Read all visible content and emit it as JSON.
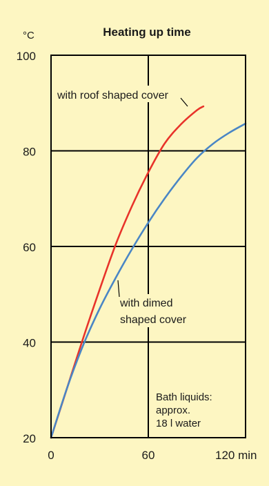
{
  "chart_data": {
    "type": "line",
    "title": "Heating up time",
    "y_unit": "°C",
    "x_unit": "min",
    "xlim": [
      0,
      120
    ],
    "ylim": [
      20,
      100
    ],
    "x_ticks": [
      0,
      60,
      120
    ],
    "x_tick_labels": [
      "0",
      "60",
      "120 min"
    ],
    "y_ticks": [
      20,
      40,
      60,
      80,
      100
    ],
    "y_tick_labels": [
      "20",
      "40",
      "60",
      "80",
      "100"
    ],
    "grid": true,
    "series": [
      {
        "name": "with roof shaped cover",
        "color": "#e8332a",
        "x": [
          0,
          10,
          20,
          30,
          40,
          50,
          60,
          70,
          80,
          90,
          94
        ],
        "y": [
          20,
          30.5,
          41,
          51,
          60.5,
          68.5,
          75.5,
          81.5,
          85.5,
          88.5,
          89.3
        ]
      },
      {
        "name": "with dimed shaped cover",
        "color": "#4a86c5",
        "x": [
          0,
          10,
          20,
          30,
          40,
          50,
          60,
          70,
          80,
          90,
          100,
          110,
          120
        ],
        "y": [
          20,
          30.5,
          39.5,
          47,
          53.5,
          59.5,
          65,
          70,
          74.5,
          78.5,
          81.5,
          83.8,
          85.7
        ]
      }
    ],
    "annotations": {
      "roof": "with roof shaped cover",
      "dimed_line1": "with dimed",
      "dimed_line2": "shaped cover",
      "bath_line1": "Bath liquids:",
      "bath_line2": "approx.",
      "bath_line3": "18 l water"
    }
  }
}
